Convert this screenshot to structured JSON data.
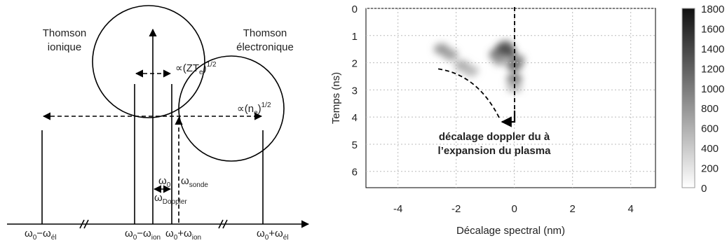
{
  "diagram": {
    "thomson_ionique": [
      "Thomson",
      "ionique"
    ],
    "thomson_electronique": [
      "Thomson",
      "électronique"
    ],
    "zte": [
      "∝(ZT",
      "e",
      ")",
      "1/2"
    ],
    "ne": [
      "∝(n",
      "e",
      ")",
      "1/2"
    ],
    "omega0": [
      "ω",
      "0"
    ],
    "omega_sonde": [
      "ω",
      "sonde"
    ],
    "omega_doppler": [
      "ω",
      "Doppler"
    ],
    "axis_labels": [
      [
        "ω",
        "0",
        "−ω",
        "él"
      ],
      [
        "ω",
        "0",
        "−ω",
        "ion"
      ],
      [
        "ω",
        "0",
        "+ω",
        "ion"
      ],
      [
        "ω",
        "0",
        "+ω",
        "él"
      ]
    ]
  },
  "chart_data": {
    "type": "heatmap",
    "xlabel": "Décalage spectral (nm)",
    "ylabel": "Temps (ns)",
    "annotation": [
      "décalage doppler du à",
      "l’expansion du plasma"
    ],
    "x": [
      -0.4,
      -0.2,
      -0.6,
      0,
      0,
      -2.5,
      -2.2,
      -1.8,
      -1.5,
      0.1,
      -0.3,
      -0.5,
      0
    ],
    "y": [
      1.5,
      1.6,
      1.7,
      2.1,
      2.6,
      1.5,
      1.7,
      2.1,
      2.3,
      1.9,
      1.4,
      1.9,
      2.9
    ],
    "values": [
      1700,
      1500,
      1200,
      1400,
      1200,
      900,
      800,
      700,
      600,
      1000,
      1300,
      800,
      600
    ],
    "xlim": [
      -5.1,
      4.85
    ],
    "xticks": [
      -4,
      -2,
      0,
      2,
      4
    ],
    "ylim": [
      0,
      6.6
    ],
    "yticks": [
      0,
      1,
      2,
      3,
      4,
      5,
      6
    ],
    "y_inverted": true,
    "clim": [
      0,
      1800
    ],
    "cticks": [
      0,
      200,
      400,
      600,
      800,
      1000,
      1200,
      1400,
      1600,
      1800
    ],
    "colors": {
      "low": "#ffffff",
      "high": "#111111"
    },
    "grid": true
  }
}
